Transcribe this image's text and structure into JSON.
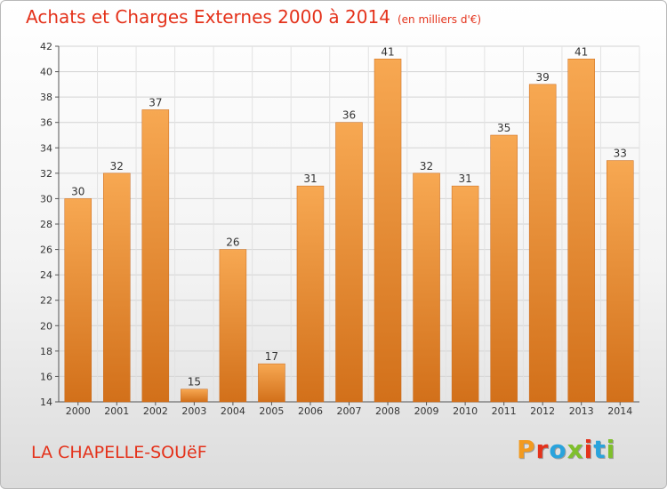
{
  "header": {
    "title": "Achats et Charges Externes 2000 à 2014",
    "unit": "(en milliers d'€)"
  },
  "footer": {
    "commune": "LA CHAPELLE-SOUëF",
    "logo_text": "Proxiti",
    "logo_colors": [
      "#f29a1f",
      "#e4321b",
      "#2aa3dc",
      "#7fbf2c",
      "#e4321b",
      "#2aa3dc",
      "#7fbf2c"
    ]
  },
  "chart_data": {
    "type": "bar",
    "categories": [
      "2000",
      "2001",
      "2002",
      "2003",
      "2004",
      "2005",
      "2006",
      "2007",
      "2008",
      "2009",
      "2010",
      "2011",
      "2012",
      "2013",
      "2014"
    ],
    "values": [
      30,
      32,
      37,
      15,
      26,
      17,
      31,
      36,
      41,
      32,
      31,
      35,
      39,
      41,
      33
    ],
    "title": "Achats et Charges Externes 2000 à 2014",
    "subtitle": "(en milliers d'€)",
    "ylim": [
      14,
      42
    ],
    "yticks": [
      14,
      16,
      18,
      20,
      22,
      24,
      26,
      28,
      30,
      32,
      34,
      36,
      38,
      40,
      42
    ],
    "grid": true,
    "bar_color": "#f49a3e",
    "bar_color_dark": "#d9761c"
  }
}
